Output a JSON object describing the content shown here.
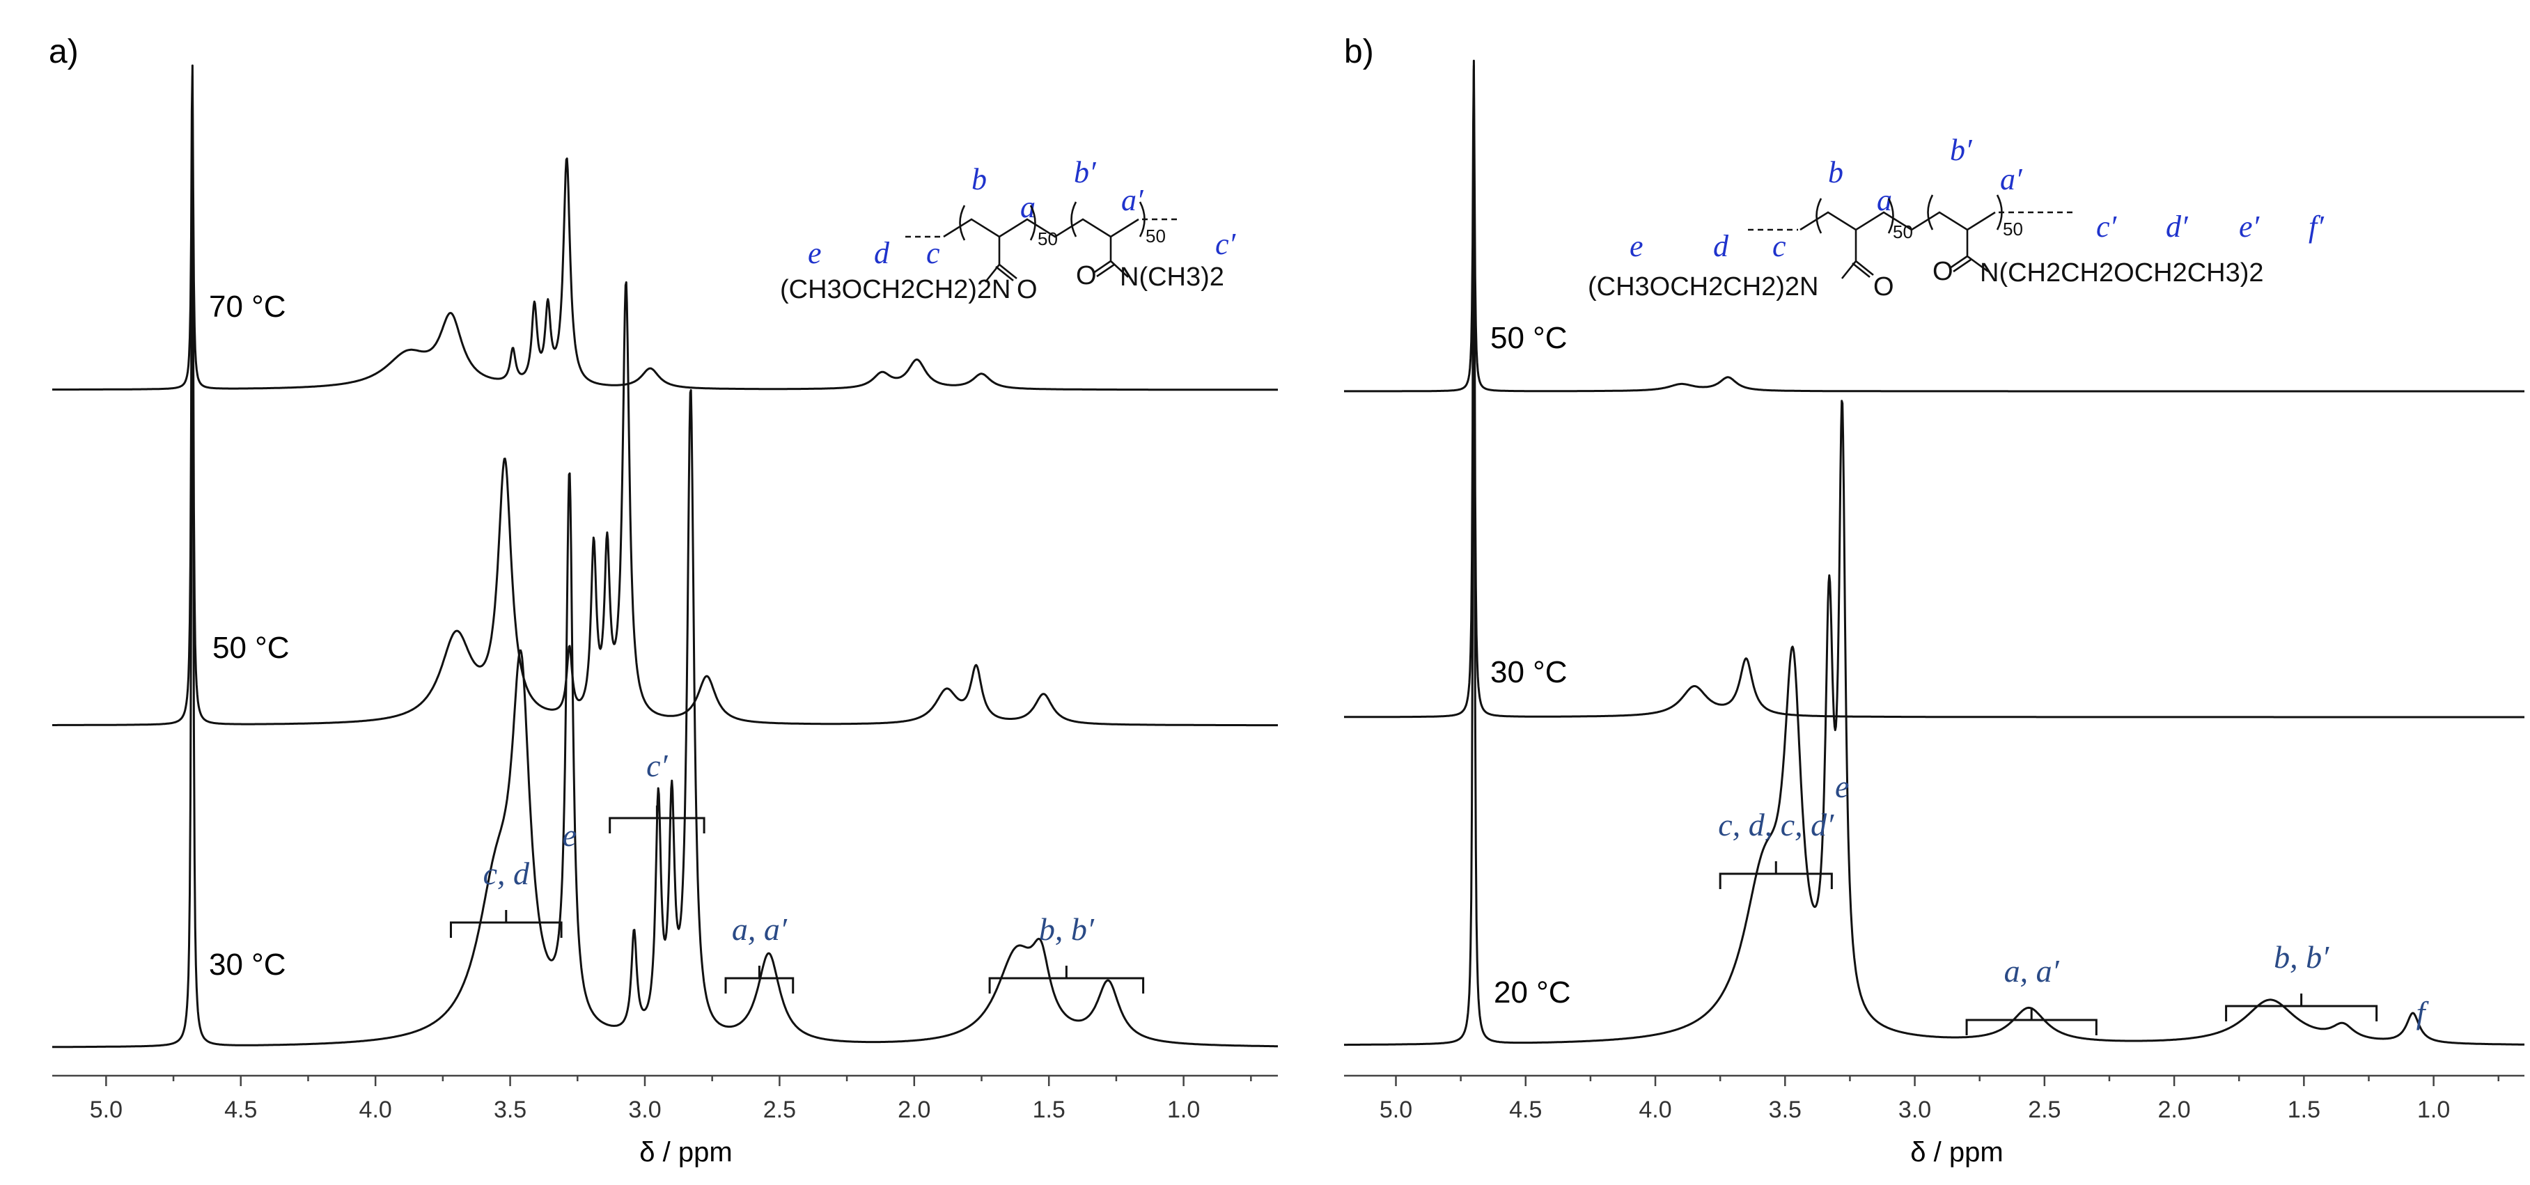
{
  "chart_data": [
    {
      "type": "line",
      "panel_label": "a)",
      "xlabel": "δ / ppm",
      "xlim": [
        5.2,
        0.65
      ],
      "xticks": [
        "5.0",
        "4.5",
        "4.0",
        "3.5",
        "3.0",
        "2.5",
        "2.0",
        "1.5",
        "1.0"
      ],
      "series": [
        {
          "name": "70 °C",
          "peaks": [
            {
              "x": 4.68,
              "h": 1.0,
              "w": 0.004
            },
            {
              "x": 3.88,
              "h": 0.1,
              "w": 0.1
            },
            {
              "x": 3.72,
              "h": 0.2,
              "w": 0.05
            },
            {
              "x": 3.49,
              "h": 0.1,
              "w": 0.012
            },
            {
              "x": 3.41,
              "h": 0.23,
              "w": 0.012
            },
            {
              "x": 3.36,
              "h": 0.22,
              "w": 0.012
            },
            {
              "x": 3.29,
              "h": 0.68,
              "w": 0.015
            },
            {
              "x": 2.98,
              "h": 0.06,
              "w": 0.04
            },
            {
              "x": 2.12,
              "h": 0.045,
              "w": 0.04
            },
            {
              "x": 1.99,
              "h": 0.085,
              "w": 0.04
            },
            {
              "x": 1.75,
              "h": 0.045,
              "w": 0.04
            }
          ]
        },
        {
          "name": "50 °C",
          "peaks": [
            {
              "x": 4.68,
              "h": 1.0,
              "w": 0.004
            },
            {
              "x": 3.7,
              "h": 0.13,
              "w": 0.07
            },
            {
              "x": 3.52,
              "h": 0.38,
              "w": 0.03
            },
            {
              "x": 3.28,
              "h": 0.1,
              "w": 0.012
            },
            {
              "x": 3.19,
              "h": 0.25,
              "w": 0.012
            },
            {
              "x": 3.14,
              "h": 0.24,
              "w": 0.012
            },
            {
              "x": 3.07,
              "h": 0.65,
              "w": 0.015
            },
            {
              "x": 2.77,
              "h": 0.07,
              "w": 0.04
            },
            {
              "x": 1.88,
              "h": 0.05,
              "w": 0.05
            },
            {
              "x": 1.77,
              "h": 0.08,
              "w": 0.025
            },
            {
              "x": 1.52,
              "h": 0.045,
              "w": 0.04
            }
          ]
        },
        {
          "name": "30 °C",
          "peaks": [
            {
              "x": 4.68,
              "h": 1.0,
              "w": 0.004
            },
            {
              "x": 3.55,
              "h": 0.15,
              "w": 0.09
            },
            {
              "x": 3.46,
              "h": 0.32,
              "w": 0.04
            },
            {
              "x": 3.28,
              "h": 0.55,
              "w": 0.015
            },
            {
              "x": 3.04,
              "h": 0.1,
              "w": 0.012
            },
            {
              "x": 2.95,
              "h": 0.23,
              "w": 0.012
            },
            {
              "x": 2.9,
              "h": 0.22,
              "w": 0.012
            },
            {
              "x": 2.83,
              "h": 0.65,
              "w": 0.015
            },
            {
              "x": 2.54,
              "h": 0.09,
              "w": 0.05
            },
            {
              "x": 1.62,
              "h": 0.09,
              "w": 0.09
            },
            {
              "x": 1.53,
              "h": 0.06,
              "w": 0.04
            },
            {
              "x": 1.28,
              "h": 0.06,
              "w": 0.05
            }
          ]
        }
      ],
      "annotations": [
        {
          "text": "c, d",
          "from": 3.72,
          "to": 3.31
        },
        {
          "text": "e",
          "at": 3.28
        },
        {
          "text": "c′",
          "from": 3.13,
          "to": 2.78
        },
        {
          "text": "a, a′",
          "from": 2.7,
          "to": 2.45
        },
        {
          "text": "b, b′",
          "from": 1.72,
          "to": 1.15
        }
      ]
    },
    {
      "type": "line",
      "panel_label": "b)",
      "xlabel": "δ / ppm",
      "xlim": [
        5.2,
        0.65
      ],
      "xticks": [
        "5.0",
        "4.5",
        "4.0",
        "3.5",
        "3.0",
        "2.5",
        "2.0",
        "1.5",
        "1.0"
      ],
      "series": [
        {
          "name": "50 °C",
          "peaks": [
            {
              "x": 4.7,
              "h": 1.0,
              "w": 0.004
            },
            {
              "x": 3.9,
              "h": 0.02,
              "w": 0.06
            },
            {
              "x": 3.72,
              "h": 0.04,
              "w": 0.04
            }
          ]
        },
        {
          "name": "30 °C",
          "peaks": [
            {
              "x": 4.7,
              "h": 1.0,
              "w": 0.004
            },
            {
              "x": 3.85,
              "h": 0.045,
              "w": 0.06
            },
            {
              "x": 3.65,
              "h": 0.085,
              "w": 0.03
            }
          ]
        },
        {
          "name": "20 °C",
          "peaks": [
            {
              "x": 4.7,
              "h": 1.0,
              "w": 0.004
            },
            {
              "x": 3.58,
              "h": 0.16,
              "w": 0.1
            },
            {
              "x": 3.47,
              "h": 0.32,
              "w": 0.04
            },
            {
              "x": 3.33,
              "h": 0.38,
              "w": 0.018
            },
            {
              "x": 3.28,
              "h": 0.58,
              "w": 0.015
            },
            {
              "x": 2.56,
              "h": 0.035,
              "w": 0.08
            },
            {
              "x": 1.63,
              "h": 0.045,
              "w": 0.12
            },
            {
              "x": 1.35,
              "h": 0.015,
              "w": 0.05
            },
            {
              "x": 1.08,
              "h": 0.03,
              "w": 0.03
            }
          ]
        }
      ],
      "annotations": [
        {
          "text": "c, d, c, d′",
          "from": 3.75,
          "to": 3.32
        },
        {
          "text": "e",
          "at": 3.28
        },
        {
          "text": "a, a′",
          "from": 2.8,
          "to": 2.3
        },
        {
          "text": "b, b′",
          "from": 1.8,
          "to": 1.22
        },
        {
          "text": "f",
          "at": 1.05
        }
      ]
    }
  ],
  "structures": {
    "a": {
      "monomer_labels": [
        "b",
        "a",
        "b′",
        "a′"
      ],
      "labels": [
        "e",
        "d",
        "c",
        "c′"
      ],
      "repeat_1": "50",
      "repeat_2": "50",
      "left_group": "(CH3OCH2CH2)2N",
      "amide_o_1": "O",
      "amide_o_2": "O",
      "right_group": "N(CH3)2"
    },
    "b": {
      "monomer_labels": [
        "b",
        "a",
        "b′",
        "a′"
      ],
      "labels": [
        "e",
        "d",
        "c",
        "c′",
        "d′",
        "e′",
        "f′"
      ],
      "repeat_1": "50",
      "repeat_2": "50",
      "left_group": "(CH3OCH2CH2)2N",
      "amide_o_1": "O",
      "amide_o_2": "O",
      "right_group": "N(CH2CH2OCH2CH3)2"
    }
  }
}
